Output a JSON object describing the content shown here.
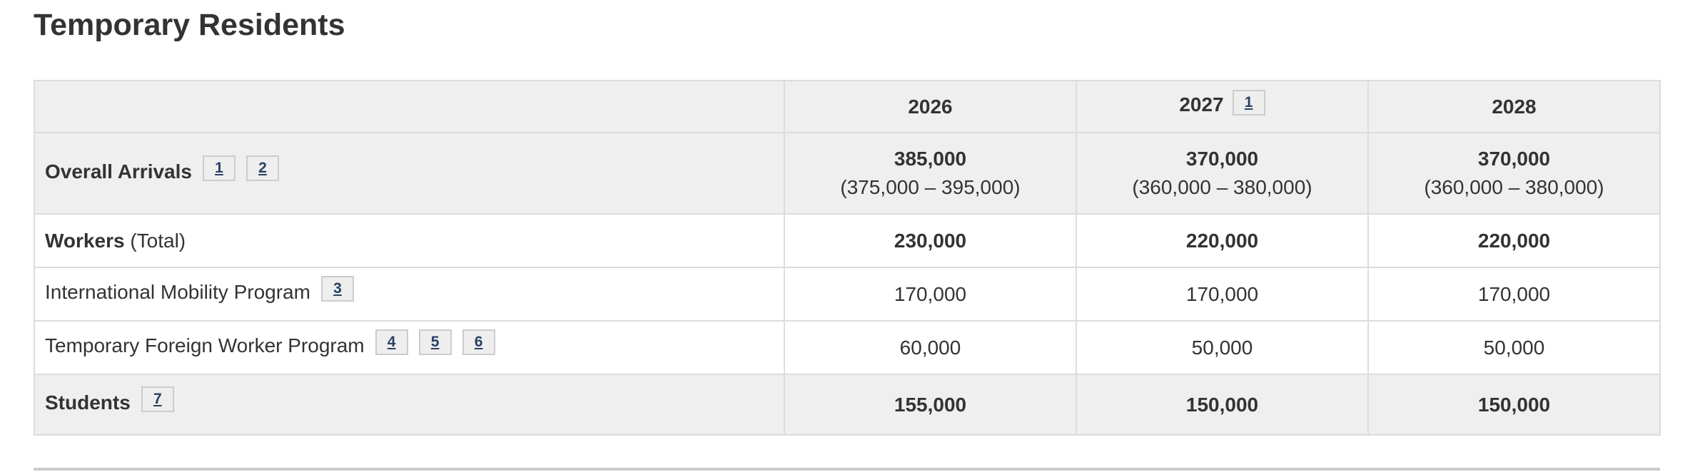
{
  "page": {
    "title": "Temporary Residents"
  },
  "colors": {
    "footnote_link": "#284162",
    "shaded_row_bg": "#efefef",
    "table_border": "#dcdcdc",
    "divider": "#cbcbcb",
    "text": "#333333"
  },
  "table": {
    "columns": [
      {
        "label": ""
      },
      {
        "label": "2026"
      },
      {
        "label": "2027",
        "footnote": "1"
      },
      {
        "label": "2028"
      }
    ],
    "rows": [
      {
        "label": "Overall Arrivals",
        "suffix": "",
        "footnotes": [
          "1",
          "2"
        ],
        "values": [
          {
            "main": "385,000",
            "range": "(375,000 – 395,000)"
          },
          {
            "main": "370,000",
            "range": "(360,000 – 380,000)"
          },
          {
            "main": "370,000",
            "range": "(360,000 – 380,000)"
          }
        ]
      },
      {
        "label": "Workers",
        "suffix": " (Total)",
        "footnotes": [],
        "values": [
          {
            "main": "230,000"
          },
          {
            "main": "220,000"
          },
          {
            "main": "220,000"
          }
        ]
      },
      {
        "label": "International Mobility Program",
        "suffix": "",
        "footnotes": [
          "3"
        ],
        "values": [
          {
            "main": "170,000"
          },
          {
            "main": "170,000"
          },
          {
            "main": "170,000"
          }
        ]
      },
      {
        "label": "Temporary Foreign Worker Program",
        "suffix": "",
        "footnotes": [
          "4",
          "5",
          "6"
        ],
        "values": [
          {
            "main": "60,000"
          },
          {
            "main": "50,000"
          },
          {
            "main": "50,000"
          }
        ]
      },
      {
        "label": "Students",
        "suffix": "",
        "footnotes": [
          "7"
        ],
        "values": [
          {
            "main": "155,000"
          },
          {
            "main": "150,000"
          },
          {
            "main": "150,000"
          }
        ]
      }
    ]
  }
}
